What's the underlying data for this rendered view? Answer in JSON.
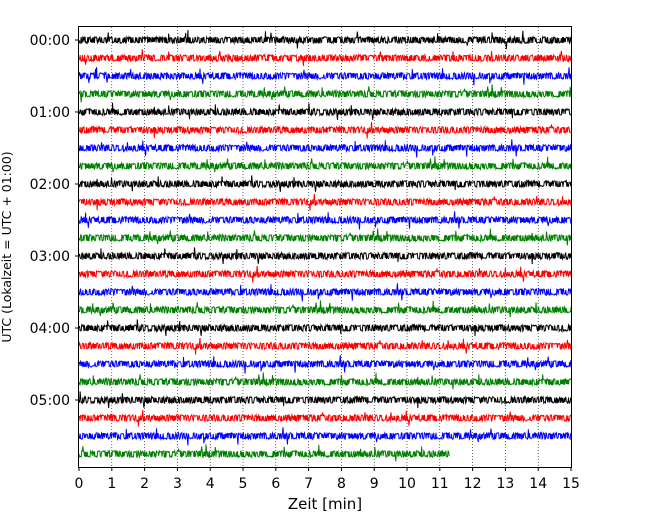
{
  "chart_data": {
    "type": "line",
    "title": "",
    "xlabel": "Zeit  [min]",
    "ylabel": "UTC (Lokalzeit = UTC + 01:00)",
    "xlim": [
      0,
      15
    ],
    "x_ticks": [
      "0",
      "1",
      "2",
      "3",
      "4",
      "5",
      "6",
      "7",
      "8",
      "9",
      "10",
      "11",
      "12",
      "13",
      "14",
      "15"
    ],
    "y_ticks": [
      "00:00",
      "01:00",
      "02:00",
      "03:00",
      "04:00",
      "05:00"
    ],
    "grid": "vertical dotted",
    "trace_minutes_per_line": 15,
    "trace_colors_cycle": [
      "#000000",
      "#ff0000",
      "#0000ff",
      "#008000"
    ],
    "traces": [
      {
        "start": "00:00",
        "end_min": 15,
        "color": "#000000"
      },
      {
        "start": "00:15",
        "end_min": 15,
        "color": "#ff0000"
      },
      {
        "start": "00:30",
        "end_min": 15,
        "color": "#0000ff"
      },
      {
        "start": "00:45",
        "end_min": 15,
        "color": "#008000"
      },
      {
        "start": "01:00",
        "end_min": 15,
        "color": "#000000"
      },
      {
        "start": "01:15",
        "end_min": 15,
        "color": "#ff0000"
      },
      {
        "start": "01:30",
        "end_min": 15,
        "color": "#0000ff"
      },
      {
        "start": "01:45",
        "end_min": 15,
        "color": "#008000"
      },
      {
        "start": "02:00",
        "end_min": 15,
        "color": "#000000"
      },
      {
        "start": "02:15",
        "end_min": 15,
        "color": "#ff0000"
      },
      {
        "start": "02:30",
        "end_min": 15,
        "color": "#0000ff"
      },
      {
        "start": "02:45",
        "end_min": 15,
        "color": "#008000"
      },
      {
        "start": "03:00",
        "end_min": 15,
        "color": "#000000"
      },
      {
        "start": "03:15",
        "end_min": 15,
        "color": "#ff0000"
      },
      {
        "start": "03:30",
        "end_min": 15,
        "color": "#0000ff"
      },
      {
        "start": "03:45",
        "end_min": 15,
        "color": "#008000"
      },
      {
        "start": "04:00",
        "end_min": 15,
        "color": "#000000"
      },
      {
        "start": "04:15",
        "end_min": 15,
        "color": "#ff0000"
      },
      {
        "start": "04:30",
        "end_min": 15,
        "color": "#0000ff"
      },
      {
        "start": "04:45",
        "end_min": 15,
        "color": "#008000"
      },
      {
        "start": "05:00",
        "end_min": 15,
        "color": "#000000"
      },
      {
        "start": "05:15",
        "end_min": 15,
        "color": "#ff0000"
      },
      {
        "start": "05:30",
        "end_min": 15,
        "color": "#0000ff"
      },
      {
        "start": "05:45",
        "end_min": 11.3,
        "color": "#008000"
      }
    ]
  }
}
